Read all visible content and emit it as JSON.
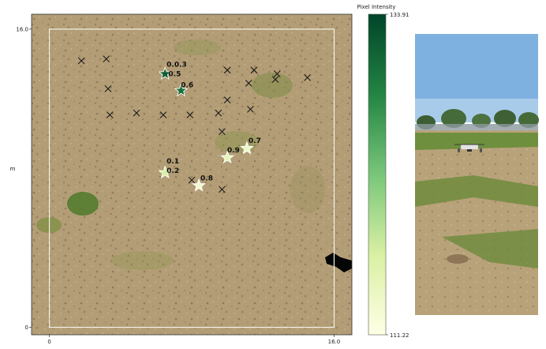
{
  "chart_data": [
    {
      "type": "scatter",
      "title": "",
      "xlabel": "m",
      "ylabel": "m",
      "xlim": [
        -1.0,
        17.0
      ],
      "ylim": [
        -0.4,
        16.8
      ],
      "x_ticks": [
        {
          "value": 0,
          "label": "0"
        },
        {
          "value": 16,
          "label": "16.0"
        }
      ],
      "y_ticks": [
        {
          "value": 0,
          "label": "0"
        },
        {
          "value": 16,
          "label": "16.0"
        }
      ],
      "boundary_box": {
        "x0": 0,
        "y0": 0,
        "x1": 16,
        "y1": 16
      },
      "grid": false,
      "background": "aerial photo of a dry grass field",
      "colormap": "YlGn",
      "colorbar_label": "Pixel Intensity",
      "colorbar_range": [
        111.22,
        133.91
      ],
      "colorbar_min_label": "111.22",
      "colorbar_max_label": "133.91",
      "series": [
        {
          "marker": "x",
          "color": "#1a1a1a",
          "points": [
            {
              "x": 1.8,
              "y": 14.3
            },
            {
              "x": 3.2,
              "y": 14.4
            },
            {
              "x": 3.3,
              "y": 12.8
            },
            {
              "x": 10.0,
              "y": 13.8
            },
            {
              "x": 11.5,
              "y": 13.8
            },
            {
              "x": 12.8,
              "y": 13.6
            },
            {
              "x": 12.7,
              "y": 13.3
            },
            {
              "x": 14.5,
              "y": 13.4
            },
            {
              "x": 11.2,
              "y": 13.1
            },
            {
              "x": 10.0,
              "y": 12.2
            },
            {
              "x": 3.4,
              "y": 11.4
            },
            {
              "x": 4.9,
              "y": 11.5
            },
            {
              "x": 6.4,
              "y": 11.4
            },
            {
              "x": 7.9,
              "y": 11.4
            },
            {
              "x": 9.5,
              "y": 11.5
            },
            {
              "x": 11.3,
              "y": 11.7
            },
            {
              "x": 9.7,
              "y": 10.5
            },
            {
              "x": 8.0,
              "y": 7.9
            },
            {
              "x": 9.7,
              "y": 7.4
            },
            {
              "x": 10.0,
              "y": 9.0
            }
          ]
        },
        {
          "marker": "star",
          "points": [
            {
              "x": 6.5,
              "y": 13.6,
              "value": 131.5,
              "label": "0.5"
            },
            {
              "x": 7.4,
              "y": 12.7,
              "value": 130.0,
              "label": "0.6"
            },
            {
              "x": 6.5,
              "y": 8.3,
              "value": 117.0,
              "label": "0.2"
            },
            {
              "x": 8.4,
              "y": 7.6,
              "value": 113.0,
              "label": "0.8"
            },
            {
              "x": 10.0,
              "y": 9.1,
              "value": 115.0,
              "label": "0.9"
            },
            {
              "x": 11.1,
              "y": 9.6,
              "value": 114.0,
              "label": "0.7"
            }
          ]
        }
      ],
      "annotations": [
        {
          "text": "0.0.3",
          "x": 6.5,
          "y": 13.9
        },
        {
          "text": "0.5",
          "x": 6.6,
          "y": 13.4
        },
        {
          "text": "0.6",
          "x": 7.3,
          "y": 12.8
        },
        {
          "text": "0.1",
          "x": 6.5,
          "y": 8.7
        },
        {
          "text": "0.2",
          "x": 6.5,
          "y": 8.2
        },
        {
          "text": "0.8",
          "x": 8.4,
          "y": 7.8
        },
        {
          "text": "0.9",
          "x": 9.9,
          "y": 9.3
        },
        {
          "text": "0.7",
          "x": 11.1,
          "y": 9.8
        }
      ]
    }
  ],
  "photo": {
    "description_free": true
  }
}
